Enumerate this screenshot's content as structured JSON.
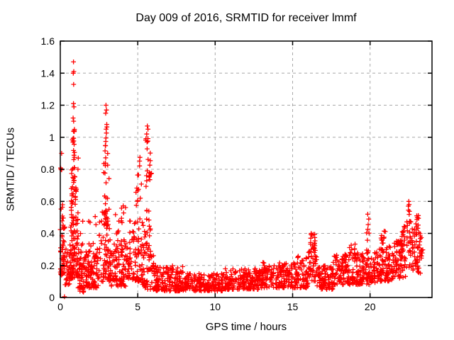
{
  "colors": {
    "background": "#ffffff",
    "text": "#000000",
    "axis": "#000000",
    "grid": "#a8a8a8",
    "marker": "#ff0000"
  },
  "chart_data": {
    "type": "scatter",
    "title": "Day 009 of 2016, SRMTID for receiver lmmf",
    "xlabel": "GPS time / hours",
    "ylabel": "SRMTID / TECUs",
    "xlim": [
      0,
      24
    ],
    "ylim": [
      0,
      1.6
    ],
    "xtick_labels": [
      "0",
      "5",
      "10",
      "15",
      "20"
    ],
    "ytick_labels": [
      "0",
      "0.2",
      "0.4",
      "0.6",
      "0.8",
      "1",
      "1.2",
      "1.4",
      "1.6"
    ],
    "grid": true,
    "grid_style": "dashed",
    "legend": false,
    "marker": "plus",
    "marker_color": "#ff0000",
    "seed": 20160109,
    "clusters_format": "[x_start, x_end, count, y_min, y_max, bottom_bias_exponent]",
    "clusters": [
      [
        0.0,
        0.3,
        45,
        0.14,
        0.44,
        1.6
      ],
      [
        0.02,
        0.22,
        10,
        0.42,
        0.6,
        1
      ],
      [
        0.02,
        0.12,
        4,
        0.78,
        0.9,
        1
      ],
      [
        0.3,
        0.62,
        22,
        0.08,
        0.32,
        1.5
      ],
      [
        0.6,
        1.15,
        90,
        0.12,
        0.55,
        1.7
      ],
      [
        0.7,
        1.05,
        40,
        0.45,
        0.82,
        1.2
      ],
      [
        0.78,
        0.96,
        16,
        0.78,
        1.05,
        1
      ],
      [
        1.15,
        2.45,
        130,
        0.06,
        0.3,
        1.6
      ],
      [
        1.3,
        2.4,
        12,
        0.3,
        0.52,
        1
      ],
      [
        1.2,
        1.75,
        10,
        0.02,
        0.07,
        1
      ],
      [
        2.5,
        3.3,
        80,
        0.1,
        0.55,
        1.5
      ],
      [
        2.8,
        3.15,
        22,
        0.45,
        0.85,
        1.1
      ],
      [
        2.88,
        3.06,
        9,
        0.8,
        1.1,
        1
      ],
      [
        3.3,
        4.45,
        110,
        0.07,
        0.36,
        1.6
      ],
      [
        3.55,
        4.3,
        12,
        0.36,
        0.58,
        1
      ],
      [
        4.45,
        5.45,
        80,
        0.1,
        0.5,
        1.5
      ],
      [
        4.85,
        5.25,
        14,
        0.55,
        0.88,
        1
      ],
      [
        5.35,
        5.92,
        30,
        0.25,
        0.8,
        1.2
      ],
      [
        5.5,
        5.82,
        13,
        0.72,
        1.0,
        1
      ],
      [
        5.3,
        6.05,
        40,
        0.05,
        0.3,
        1.5
      ],
      [
        6.0,
        8.0,
        160,
        0.04,
        0.2,
        1.5
      ],
      [
        8.0,
        10.5,
        180,
        0.04,
        0.15,
        1.4
      ],
      [
        10.5,
        13.0,
        190,
        0.05,
        0.18,
        1.4
      ],
      [
        13.0,
        15.3,
        180,
        0.06,
        0.22,
        1.3
      ],
      [
        15.3,
        16.0,
        55,
        0.06,
        0.26,
        1.3
      ],
      [
        16.0,
        16.55,
        45,
        0.1,
        0.34,
        1.2
      ],
      [
        16.1,
        16.45,
        12,
        0.3,
        0.4,
        1
      ],
      [
        16.55,
        17.6,
        85,
        0.05,
        0.2,
        1.4
      ],
      [
        17.6,
        19.3,
        140,
        0.08,
        0.28,
        1.4
      ],
      [
        18.6,
        19.1,
        10,
        0.25,
        0.34,
        1
      ],
      [
        19.3,
        20.4,
        95,
        0.08,
        0.28,
        1.4
      ],
      [
        19.75,
        19.95,
        11,
        0.25,
        0.5,
        1
      ],
      [
        20.4,
        21.4,
        85,
        0.1,
        0.32,
        1.3
      ],
      [
        20.65,
        21.05,
        12,
        0.3,
        0.42,
        1
      ],
      [
        21.4,
        22.3,
        75,
        0.12,
        0.36,
        1.3
      ],
      [
        21.9,
        22.25,
        14,
        0.32,
        0.46,
        1
      ],
      [
        22.35,
        22.65,
        26,
        0.18,
        0.55,
        1.1
      ],
      [
        22.7,
        23.25,
        48,
        0.15,
        0.45,
        1.2
      ],
      [
        22.95,
        23.15,
        8,
        0.42,
        0.52,
        1
      ],
      [
        23.18,
        23.42,
        12,
        0.22,
        0.38,
        1
      ]
    ],
    "notable_points": [
      [
        0.27,
        0.005
      ],
      [
        0.85,
        1.47
      ],
      [
        0.87,
        1.41
      ],
      [
        0.84,
        1.4
      ],
      [
        0.86,
        1.33
      ],
      [
        0.85,
        1.21
      ],
      [
        0.88,
        1.19
      ],
      [
        0.83,
        1.12
      ],
      [
        0.86,
        1.1
      ],
      [
        0.9,
        1.04
      ],
      [
        1.16,
        0.87
      ],
      [
        1.14,
        0.8
      ],
      [
        2.95,
        1.2
      ],
      [
        2.98,
        1.17
      ],
      [
        2.93,
        1.15
      ],
      [
        3.0,
        1.08
      ],
      [
        2.96,
        1.05
      ],
      [
        5.62,
        1.07
      ],
      [
        5.66,
        1.05
      ],
      [
        5.58,
        1.02
      ],
      [
        5.6,
        0.97
      ],
      [
        16.2,
        0.4
      ],
      [
        16.25,
        0.39
      ],
      [
        19.85,
        0.52
      ],
      [
        22.5,
        0.6
      ],
      [
        22.52,
        0.58
      ],
      [
        22.47,
        0.57
      ],
      [
        23.05,
        0.5
      ]
    ]
  }
}
